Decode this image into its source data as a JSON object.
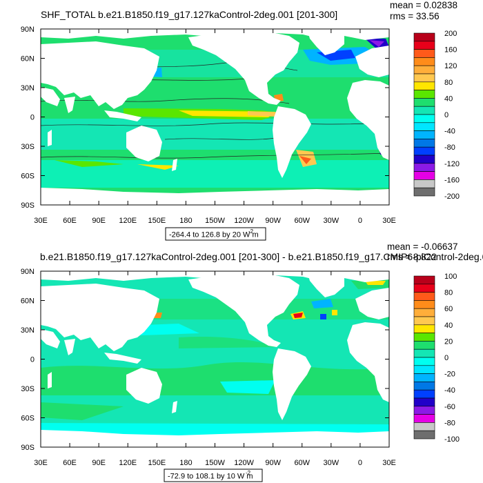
{
  "panels": [
    {
      "title": "SHF_TOTAL b.e21.B1850.f19_g17.127kaControl-2deg.001 [201-300]",
      "mean_text": "mean = 0.02838",
      "rms_text": "rms = 33.56",
      "range_label": "-264.4 to 126.8 by 20  W m",
      "range_exp": "-2",
      "lat_labels": [
        "90N",
        "60N",
        "30N",
        "0",
        "30S",
        "60S",
        "90S"
      ],
      "lon_labels": [
        "30E",
        "60E",
        "90E",
        "120E",
        "150E",
        "180",
        "150W",
        "120W",
        "90W",
        "60W",
        "30W",
        "0",
        "30E"
      ],
      "colorbar": {
        "labels": [
          "200",
          "160",
          "120",
          "80",
          "40",
          "0",
          "-40",
          "-80",
          "-120",
          "-160",
          "-200"
        ],
        "colors": [
          "#b8001a",
          "#e8001a",
          "#ff5a1a",
          "#ff8c1a",
          "#ffae3a",
          "#ffc850",
          "#ffe600",
          "#5ae600",
          "#1ede6e",
          "#14e6b4",
          "#00fff0",
          "#00e6ff",
          "#00b4ff",
          "#0078e6",
          "#0040ff",
          "#2000c8",
          "#8c1ae6",
          "#e600e6",
          "#c8c8c8",
          "#6e6e6e"
        ]
      }
    },
    {
      "title": "b.e21.B1850.f19_g17.127kaControl-2deg.001 [201-300] - b.e21.B1850.f19_g17.CMIP6-piControl-2deg.0",
      "mean_text": "mean = -0.06637",
      "rms_text": "rms = 8.822",
      "range_label": "-72.9 to 108.1 by 10  W m",
      "range_exp": "-2",
      "lat_labels": [
        "90N",
        "60N",
        "30N",
        "0",
        "30S",
        "60S",
        "90S"
      ],
      "lon_labels": [
        "30E",
        "60E",
        "90E",
        "120E",
        "150E",
        "180",
        "150W",
        "120W",
        "90W",
        "60W",
        "30W",
        "0",
        "30E"
      ],
      "colorbar": {
        "labels": [
          "100",
          "80",
          "60",
          "40",
          "20",
          "0",
          "-20",
          "-40",
          "-60",
          "-80",
          "-100"
        ],
        "colors": [
          "#b8001a",
          "#e8001a",
          "#ff5a1a",
          "#ff8c1a",
          "#ffae3a",
          "#ffc850",
          "#ffe600",
          "#5ae600",
          "#1ede6e",
          "#14e6b4",
          "#00fff0",
          "#00e6ff",
          "#00b4ff",
          "#0078e6",
          "#0040ff",
          "#2000c8",
          "#8c1ae6",
          "#e600e6",
          "#c8c8c8",
          "#6e6e6e"
        ]
      }
    }
  ]
}
